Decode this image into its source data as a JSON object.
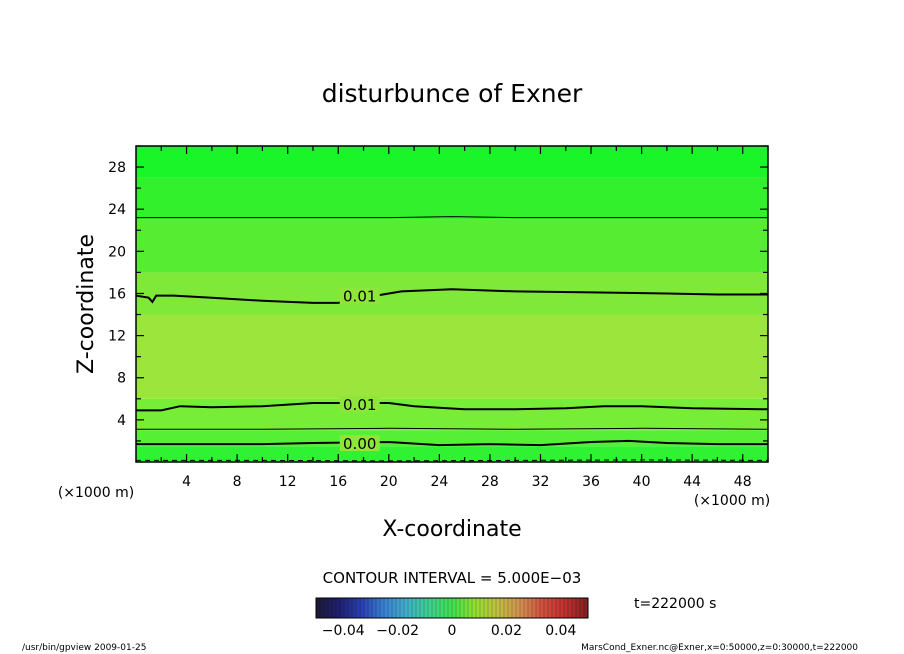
{
  "chart_data": {
    "type": "contour",
    "title": "disturbunce of Exner",
    "xlabel": "X-coordinate",
    "ylabel": "Z-coordinate",
    "x_unit": "(×1000 m)",
    "y_unit": "(×1000 m)",
    "xlim": [
      0,
      50
    ],
    "ylim": [
      0,
      30
    ],
    "x_ticks": [
      4,
      8,
      12,
      16,
      20,
      24,
      28,
      32,
      36,
      40,
      44,
      48
    ],
    "y_ticks": [
      4,
      8,
      12,
      16,
      20,
      24,
      28
    ],
    "contour_interval_text": "CONTOUR INTERVAL = 5.000E−03",
    "contours": [
      {
        "label": "0.01",
        "label_at": [
          17.7,
          15.8
        ],
        "points": [
          [
            0,
            15.8
          ],
          [
            1,
            15.6
          ],
          [
            1.3,
            15.2
          ],
          [
            1.6,
            15.8
          ],
          [
            3,
            15.8
          ],
          [
            6,
            15.6
          ],
          [
            10,
            15.3
          ],
          [
            14,
            15.1
          ],
          [
            16,
            15.1
          ],
          [
            19,
            15.8
          ],
          [
            21,
            16.2
          ],
          [
            25,
            16.4
          ],
          [
            30,
            16.2
          ],
          [
            36,
            16.1
          ],
          [
            42,
            16.0
          ],
          [
            46,
            15.9
          ],
          [
            50,
            15.9
          ]
        ]
      },
      {
        "label": "0.01",
        "label_at": [
          17.7,
          5.5
        ],
        "points": [
          [
            0,
            4.9
          ],
          [
            2,
            4.9
          ],
          [
            3.5,
            5.3
          ],
          [
            6,
            5.2
          ],
          [
            10,
            5.3
          ],
          [
            14,
            5.6
          ],
          [
            16,
            5.6
          ],
          [
            20,
            5.6
          ],
          [
            22,
            5.3
          ],
          [
            26,
            5.0
          ],
          [
            30,
            5.0
          ],
          [
            34,
            5.1
          ],
          [
            37,
            5.3
          ],
          [
            40,
            5.3
          ],
          [
            44,
            5.1
          ],
          [
            50,
            5.0
          ]
        ]
      },
      {
        "label": "0.00",
        "label_at": [
          17.7,
          1.8
        ],
        "points": [
          [
            0,
            1.7
          ],
          [
            5,
            1.7
          ],
          [
            10,
            1.7
          ],
          [
            14,
            1.8
          ],
          [
            20,
            1.9
          ],
          [
            24,
            1.6
          ],
          [
            28,
            1.7
          ],
          [
            32,
            1.6
          ],
          [
            36,
            1.9
          ],
          [
            39,
            2.0
          ],
          [
            42,
            1.8
          ],
          [
            46,
            1.7
          ],
          [
            50,
            1.7
          ]
        ]
      },
      {
        "label": "",
        "points": [
          [
            0,
            23.2
          ],
          [
            10,
            23.2
          ],
          [
            20,
            23.2
          ],
          [
            25,
            23.3
          ],
          [
            30,
            23.2
          ],
          [
            40,
            23.2
          ],
          [
            50,
            23.2
          ]
        ]
      },
      {
        "label": "",
        "points": [
          [
            0,
            3.1
          ],
          [
            10,
            3.1
          ],
          [
            20,
            3.2
          ],
          [
            30,
            3.1
          ],
          [
            40,
            3.2
          ],
          [
            50,
            3.1
          ]
        ]
      },
      {
        "label": "",
        "dashed": true,
        "points": [
          [
            0,
            0.15
          ],
          [
            10,
            0.15
          ],
          [
            20,
            0.1
          ],
          [
            30,
            0.15
          ],
          [
            40,
            0.2
          ],
          [
            50,
            0.15
          ]
        ]
      }
    ],
    "fill_bands": [
      {
        "from": 0,
        "to": 1.5,
        "color": "#2ef232"
      },
      {
        "from": 1.5,
        "to": 3,
        "color": "#55f035"
      },
      {
        "from": 3,
        "to": 6,
        "color": "#77ed38"
      },
      {
        "from": 6,
        "to": 14,
        "color": "#9be53c"
      },
      {
        "from": 14,
        "to": 18,
        "color": "#7fe838"
      },
      {
        "from": 18,
        "to": 23,
        "color": "#55ec32"
      },
      {
        "from": 23,
        "to": 27,
        "color": "#33f02c"
      },
      {
        "from": 27,
        "to": 30,
        "color": "#1af52a"
      }
    ],
    "colorbar": {
      "tick_labels": [
        "−0.04",
        "−0.02",
        "0",
        "0.02",
        "0.04"
      ],
      "tick_values": [
        -0.04,
        -0.02,
        0,
        0.02,
        0.04
      ],
      "range": [
        -0.05,
        0.05
      ],
      "colors": [
        "#1a1a33",
        "#202070",
        "#2a40b0",
        "#3a80d0",
        "#40b0c8",
        "#40d090",
        "#40e050",
        "#90e030",
        "#c0c040",
        "#d09050",
        "#d05040",
        "#c03030",
        "#802020"
      ]
    },
    "time_label": "t=222000 s"
  },
  "footer": {
    "left": "/usr/bin/gpview   2009-01-25",
    "right": "MarsCond_Exner.nc@Exner,x=0:50000,z=0:30000,t=222000"
  }
}
